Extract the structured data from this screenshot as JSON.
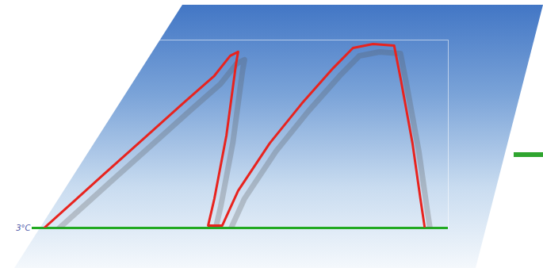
{
  "chart_data": {
    "type": "line",
    "x": [
      2.9,
      7.6,
      17.1,
      26.7,
      36.2,
      43.8,
      47.6,
      49.5,
      49,
      46.7,
      43.8,
      42.3,
      45.7,
      49.5,
      57.1,
      64.8,
      72.4,
      77.1,
      81.9,
      87,
      88.6,
      91.4,
      93.3,
      94.3
    ],
    "values": [
      0,
      9.3,
      28.3,
      47.3,
      66.2,
      81,
      91.6,
      93.7,
      87.3,
      49.4,
      15.6,
      1.3,
      1.3,
      19.8,
      45.1,
      66.2,
      85.2,
      95.8,
      97.9,
      97,
      78.9,
      45.1,
      15.6,
      0.8
    ],
    "color": "#e8231e",
    "xlim": [
      0,
      100
    ],
    "ylim": [
      0,
      100
    ],
    "yticks": [
      {
        "value": 0,
        "label": "3°C"
      }
    ],
    "grid": true,
    "tick_labels": "y"
  }
}
